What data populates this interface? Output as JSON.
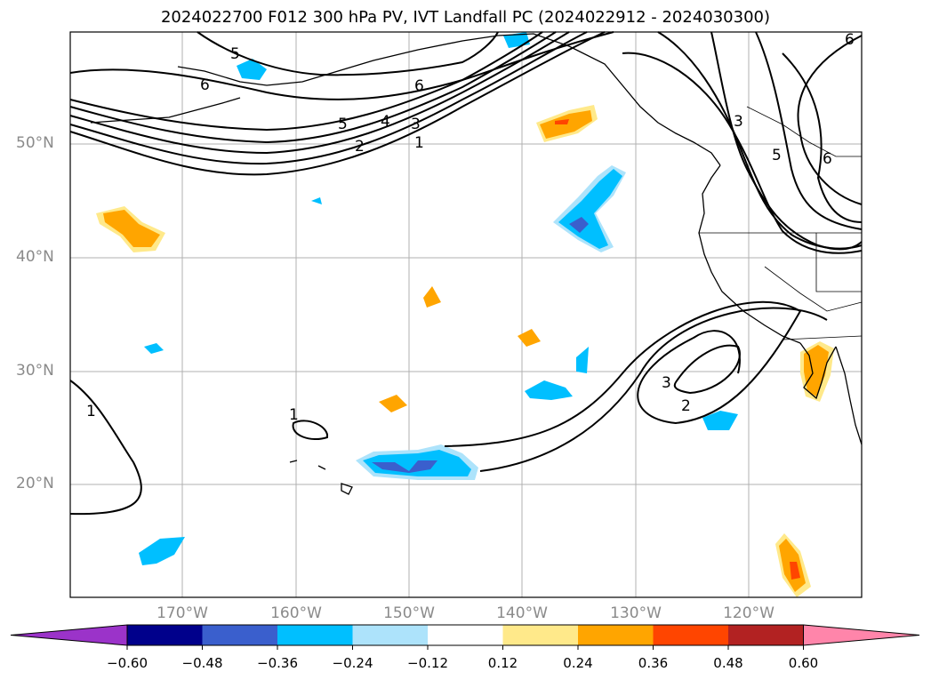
{
  "title": "2024022700 F012 300 hPa PV, IVT Landfall PC (2024022912 - 2024030300)",
  "lat_labels": [
    "50°N",
    "40°N",
    "30°N",
    "20°N"
  ],
  "lon_labels": [
    "170°W",
    "160°W",
    "150°W",
    "140°W",
    "130°W",
    "120°W"
  ],
  "contour_labels": [
    "5",
    "6",
    "6",
    "5",
    "4",
    "3",
    "2",
    "1",
    "3",
    "5",
    "6",
    "3",
    "2",
    "1",
    "1",
    "6"
  ],
  "colorbar": {
    "ticks": [
      "−0.60",
      "−0.48",
      "−0.36",
      "−0.24",
      "−0.12",
      "0.12",
      "0.24",
      "0.36",
      "0.48",
      "0.60"
    ],
    "colors": [
      "#9b33c9",
      "#00008b",
      "#3a5fcd",
      "#00bfff",
      "#ade3fb",
      "#ffffff",
      "#ffe98a",
      "#ffa500",
      "#ff4500",
      "#b22222",
      "#ff85aa"
    ]
  },
  "map_colors": {
    "pos_light": "#ffe98a",
    "pos": "#ffa500",
    "pos_dark": "#ff4500",
    "neg_light": "#ade3fb",
    "neg": "#00bfff",
    "neg_dark": "#3a5fcd"
  }
}
